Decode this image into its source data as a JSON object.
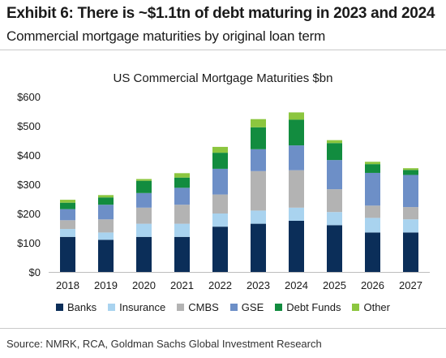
{
  "header": {
    "title": "Exhibit 6: There is ~$1.1tn of debt maturing in 2023 and 2024",
    "subtitle": "Commercial mortgage maturities by original loan term"
  },
  "source": "Source: NMRK, RCA, Goldman Sachs Global Investment Research",
  "chart_data": {
    "type": "bar",
    "stacked": true,
    "title": "US Commercial Mortgage Maturities $bn",
    "xlabel": "",
    "ylabel": "",
    "categories": [
      "2018",
      "2019",
      "2020",
      "2021",
      "2022",
      "2023",
      "2024",
      "2025",
      "2026",
      "2027"
    ],
    "ylim": [
      0,
      600
    ],
    "yticks": [
      0,
      100,
      200,
      300,
      400,
      500,
      600
    ],
    "ytick_labels": [
      "$0",
      "$100",
      "$200",
      "$300",
      "$400",
      "$500",
      "$600"
    ],
    "grid": false,
    "legend_position": "bottom",
    "series": [
      {
        "name": "Banks",
        "color": "#0b2e59",
        "values": [
          120,
          110,
          120,
          120,
          155,
          165,
          175,
          160,
          135,
          135
        ]
      },
      {
        "name": "Insurance",
        "color": "#a9d3ef",
        "values": [
          27,
          25,
          45,
          45,
          45,
          45,
          45,
          45,
          50,
          45
        ]
      },
      {
        "name": "CMBS",
        "color": "#b3b3b3",
        "values": [
          30,
          45,
          55,
          65,
          65,
          135,
          128,
          78,
          42,
          42
        ]
      },
      {
        "name": "GSE",
        "color": "#6d8fc7",
        "values": [
          38,
          50,
          50,
          58,
          88,
          75,
          85,
          100,
          112,
          110
        ]
      },
      {
        "name": "Debt Funds",
        "color": "#128c3f",
        "values": [
          22,
          25,
          42,
          35,
          55,
          75,
          88,
          58,
          30,
          17
        ]
      },
      {
        "name": "Other",
        "color": "#8cc63f",
        "values": [
          10,
          8,
          6,
          15,
          20,
          28,
          25,
          10,
          8,
          6
        ]
      }
    ]
  }
}
